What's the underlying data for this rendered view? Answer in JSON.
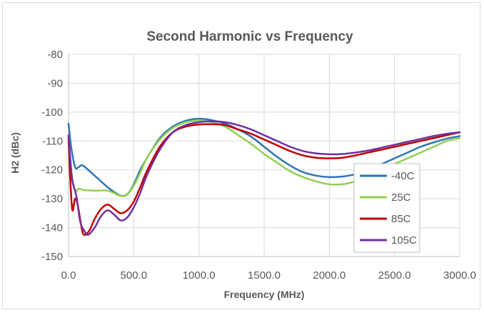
{
  "chart_data": {
    "type": "line",
    "title": "Second Harmonic vs Frequency",
    "xlabel": "Frequency (MHz)",
    "ylabel": "H2 (dBc)",
    "xlim": [
      0,
      3000
    ],
    "ylim": [
      -150,
      -80
    ],
    "x_ticks": [
      "0.0",
      "500.0",
      "1000.0",
      "1500.0",
      "2000.0",
      "2500.0",
      "3000.0"
    ],
    "x_tick_values": [
      0,
      500,
      1000,
      1500,
      2000,
      2500,
      3000
    ],
    "y_ticks": [
      "-80",
      "-90",
      "-100",
      "-110",
      "-120",
      "-130",
      "-140",
      "-150"
    ],
    "y_tick_values": [
      -80,
      -90,
      -100,
      -110,
      -120,
      -130,
      -140,
      -150
    ],
    "grid": true,
    "legend_position": "bottom-right",
    "series": [
      {
        "name": "-40C",
        "color": "#2e75b6",
        "points": [
          [
            0,
            -104
          ],
          [
            20,
            -112
          ],
          [
            50,
            -119
          ],
          [
            80,
            -119
          ],
          [
            110,
            -118.5
          ],
          [
            200,
            -122
          ],
          [
            300,
            -126
          ],
          [
            380,
            -128.5
          ],
          [
            420,
            -129
          ],
          [
            460,
            -128
          ],
          [
            500,
            -125
          ],
          [
            550,
            -120
          ],
          [
            600,
            -116
          ],
          [
            700,
            -109
          ],
          [
            800,
            -105
          ],
          [
            900,
            -103
          ],
          [
            1000,
            -102.3
          ],
          [
            1100,
            -102.8
          ],
          [
            1200,
            -104
          ],
          [
            1300,
            -106
          ],
          [
            1400,
            -108.5
          ],
          [
            1500,
            -112
          ],
          [
            1600,
            -115.5
          ],
          [
            1700,
            -118.5
          ],
          [
            1800,
            -120.8
          ],
          [
            1900,
            -122
          ],
          [
            2000,
            -122.5
          ],
          [
            2100,
            -122.3
          ],
          [
            2200,
            -121.5
          ],
          [
            2300,
            -120
          ],
          [
            2400,
            -118
          ],
          [
            2500,
            -116
          ],
          [
            2600,
            -114
          ],
          [
            2700,
            -112
          ],
          [
            2800,
            -110.5
          ],
          [
            2900,
            -109.2
          ],
          [
            3000,
            -108.3
          ]
        ]
      },
      {
        "name": "25C",
        "color": "#92d050",
        "points": [
          [
            0,
            -108
          ],
          [
            20,
            -120
          ],
          [
            50,
            -127
          ],
          [
            80,
            -126.5
          ],
          [
            120,
            -127
          ],
          [
            200,
            -127.2
          ],
          [
            300,
            -127.2
          ],
          [
            400,
            -129
          ],
          [
            450,
            -128.5
          ],
          [
            500,
            -125.5
          ],
          [
            550,
            -121
          ],
          [
            600,
            -116
          ],
          [
            700,
            -109.5
          ],
          [
            800,
            -105.5
          ],
          [
            900,
            -103.5
          ],
          [
            1000,
            -103
          ],
          [
            1100,
            -103.5
          ],
          [
            1200,
            -105
          ],
          [
            1300,
            -108
          ],
          [
            1400,
            -111
          ],
          [
            1500,
            -114.5
          ],
          [
            1600,
            -117.5
          ],
          [
            1700,
            -120.5
          ],
          [
            1800,
            -122.5
          ],
          [
            1900,
            -124
          ],
          [
            2000,
            -125
          ],
          [
            2100,
            -125
          ],
          [
            2200,
            -124
          ],
          [
            2300,
            -122.5
          ],
          [
            2400,
            -120.5
          ],
          [
            2500,
            -118
          ],
          [
            2600,
            -116
          ],
          [
            2700,
            -114
          ],
          [
            2800,
            -112
          ],
          [
            2900,
            -110
          ],
          [
            3000,
            -109
          ]
        ]
      },
      {
        "name": "85C",
        "color": "#c00000",
        "points": [
          [
            0,
            -109
          ],
          [
            15,
            -125
          ],
          [
            30,
            -134
          ],
          [
            50,
            -130
          ],
          [
            70,
            -132
          ],
          [
            100,
            -140
          ],
          [
            120,
            -142.5
          ],
          [
            160,
            -141
          ],
          [
            200,
            -137
          ],
          [
            250,
            -133.5
          ],
          [
            300,
            -132
          ],
          [
            350,
            -133.5
          ],
          [
            400,
            -135
          ],
          [
            450,
            -134
          ],
          [
            500,
            -131
          ],
          [
            550,
            -126
          ],
          [
            600,
            -120.5
          ],
          [
            700,
            -112
          ],
          [
            800,
            -107
          ],
          [
            900,
            -105
          ],
          [
            1000,
            -104.3
          ],
          [
            1100,
            -104.2
          ],
          [
            1200,
            -104.5
          ],
          [
            1300,
            -106
          ],
          [
            1400,
            -107.5
          ],
          [
            1500,
            -109.5
          ],
          [
            1600,
            -111.5
          ],
          [
            1700,
            -113.5
          ],
          [
            1800,
            -115
          ],
          [
            1900,
            -115.8
          ],
          [
            2000,
            -116
          ],
          [
            2100,
            -115.8
          ],
          [
            2200,
            -115
          ],
          [
            2300,
            -114
          ],
          [
            2400,
            -113
          ],
          [
            2500,
            -112
          ],
          [
            2600,
            -111
          ],
          [
            2700,
            -110
          ],
          [
            2800,
            -109
          ],
          [
            2900,
            -108
          ],
          [
            3000,
            -107
          ]
        ]
      },
      {
        "name": "105C",
        "color": "#7030a0",
        "points": [
          [
            0,
            -108
          ],
          [
            15,
            -117
          ],
          [
            30,
            -124
          ],
          [
            60,
            -129
          ],
          [
            90,
            -138
          ],
          [
            120,
            -141
          ],
          [
            150,
            -142.5
          ],
          [
            200,
            -140
          ],
          [
            250,
            -136
          ],
          [
            300,
            -134
          ],
          [
            350,
            -135.5
          ],
          [
            400,
            -137.5
          ],
          [
            450,
            -136.5
          ],
          [
            500,
            -133
          ],
          [
            550,
            -128
          ],
          [
            600,
            -122
          ],
          [
            700,
            -113
          ],
          [
            800,
            -107
          ],
          [
            900,
            -104.5
          ],
          [
            1000,
            -103.5
          ],
          [
            1100,
            -103.2
          ],
          [
            1200,
            -103.5
          ],
          [
            1300,
            -104.5
          ],
          [
            1400,
            -106
          ],
          [
            1500,
            -108
          ],
          [
            1600,
            -110
          ],
          [
            1700,
            -112
          ],
          [
            1800,
            -113.5
          ],
          [
            1900,
            -114.3
          ],
          [
            2000,
            -114.6
          ],
          [
            2100,
            -114.5
          ],
          [
            2200,
            -114
          ],
          [
            2300,
            -113.3
          ],
          [
            2400,
            -112.3
          ],
          [
            2500,
            -111.3
          ],
          [
            2600,
            -110.3
          ],
          [
            2700,
            -109.3
          ],
          [
            2800,
            -108.3
          ],
          [
            2900,
            -107.5
          ],
          [
            3000,
            -107
          ]
        ]
      }
    ]
  }
}
